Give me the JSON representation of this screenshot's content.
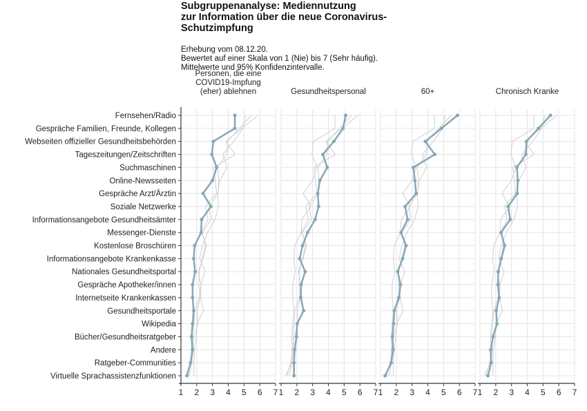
{
  "chart_data": {
    "type": "line",
    "title": [
      "Subgruppenanalyse: Mediennutzung",
      "zur Information über die neue Coronavirus-",
      "Schutzimpfung"
    ],
    "subtitle": [
      "Erhebung vom 08.12.20.",
      "Bewertet auf einer Skala von 1 (Nie) bis 7 (Sehr häufig).",
      "Mittelwerte und 95% Konfidenzintervalle."
    ],
    "xlim": [
      1,
      7
    ],
    "xticks": [
      "1",
      "2",
      "3",
      "4",
      "5",
      "6",
      "7"
    ],
    "grid": true,
    "highlight_color": "#87a7b6",
    "context_color": "#cfcfcf",
    "categories": [
      "Fernsehen/Radio",
      "Gespräche Familien, Freunde, Kollegen",
      "Webseiten offizieller Gesundheitsbehörden",
      "Tageszeitungen/Zeitschriften",
      "Suchmaschinen",
      "Online-Newsseiten",
      "Gespräche Arzt/Ärztin",
      "Soziale Netzwerke",
      "Informationsangebote Gesundheitsämter",
      "Messenger-Dienste",
      "Kostenlose Broschüren",
      "Informationsangebote Krankenkasse",
      "Nationales Gesundheitsportal",
      "Gespräche Apotheker/innen",
      "Internetseite Krankenkassen",
      "Gesundheitsportale",
      "Wikipedia",
      "Bücher/Gesundheitsratgeber",
      "Andere",
      "Ratgeber-Communities",
      "Virtuelle Sprachassistenzfunktionen"
    ],
    "series": [
      {
        "name": [
          "Personen, die eine",
          "COVID19-Impfung",
          "(eher) ablehnen"
        ],
        "values": [
          4.42,
          4.42,
          3.05,
          2.96,
          3.27,
          3.0,
          2.4,
          2.9,
          2.31,
          2.28,
          1.87,
          1.81,
          1.9,
          1.74,
          1.74,
          1.81,
          1.74,
          1.67,
          1.73,
          1.61,
          1.38
        ]
      },
      {
        "name": [
          "Gesundheitspersonal"
        ],
        "values": [
          5.1,
          4.93,
          4.35,
          3.65,
          3.93,
          3.46,
          3.33,
          3.38,
          3.16,
          2.68,
          2.36,
          2.18,
          2.53,
          2.27,
          2.25,
          2.43,
          2.02,
          1.98,
          1.86,
          1.82,
          1.82
        ]
      },
      {
        "name": [
          "60+"
        ],
        "values": [
          5.88,
          4.86,
          3.84,
          4.44,
          3.08,
          3.18,
          3.26,
          2.56,
          2.72,
          2.3,
          2.62,
          2.4,
          2.09,
          2.27,
          2.16,
          1.87,
          1.83,
          1.76,
          1.8,
          1.68,
          1.29
        ]
      },
      {
        "name": [
          "Chronisch Kranke"
        ],
        "values": [
          5.47,
          4.71,
          3.95,
          3.91,
          3.34,
          3.4,
          3.36,
          2.79,
          2.92,
          2.34,
          2.56,
          2.35,
          2.16,
          2.14,
          2.22,
          2.03,
          2.08,
          1.83,
          1.68,
          1.71,
          1.51
        ]
      }
    ]
  }
}
